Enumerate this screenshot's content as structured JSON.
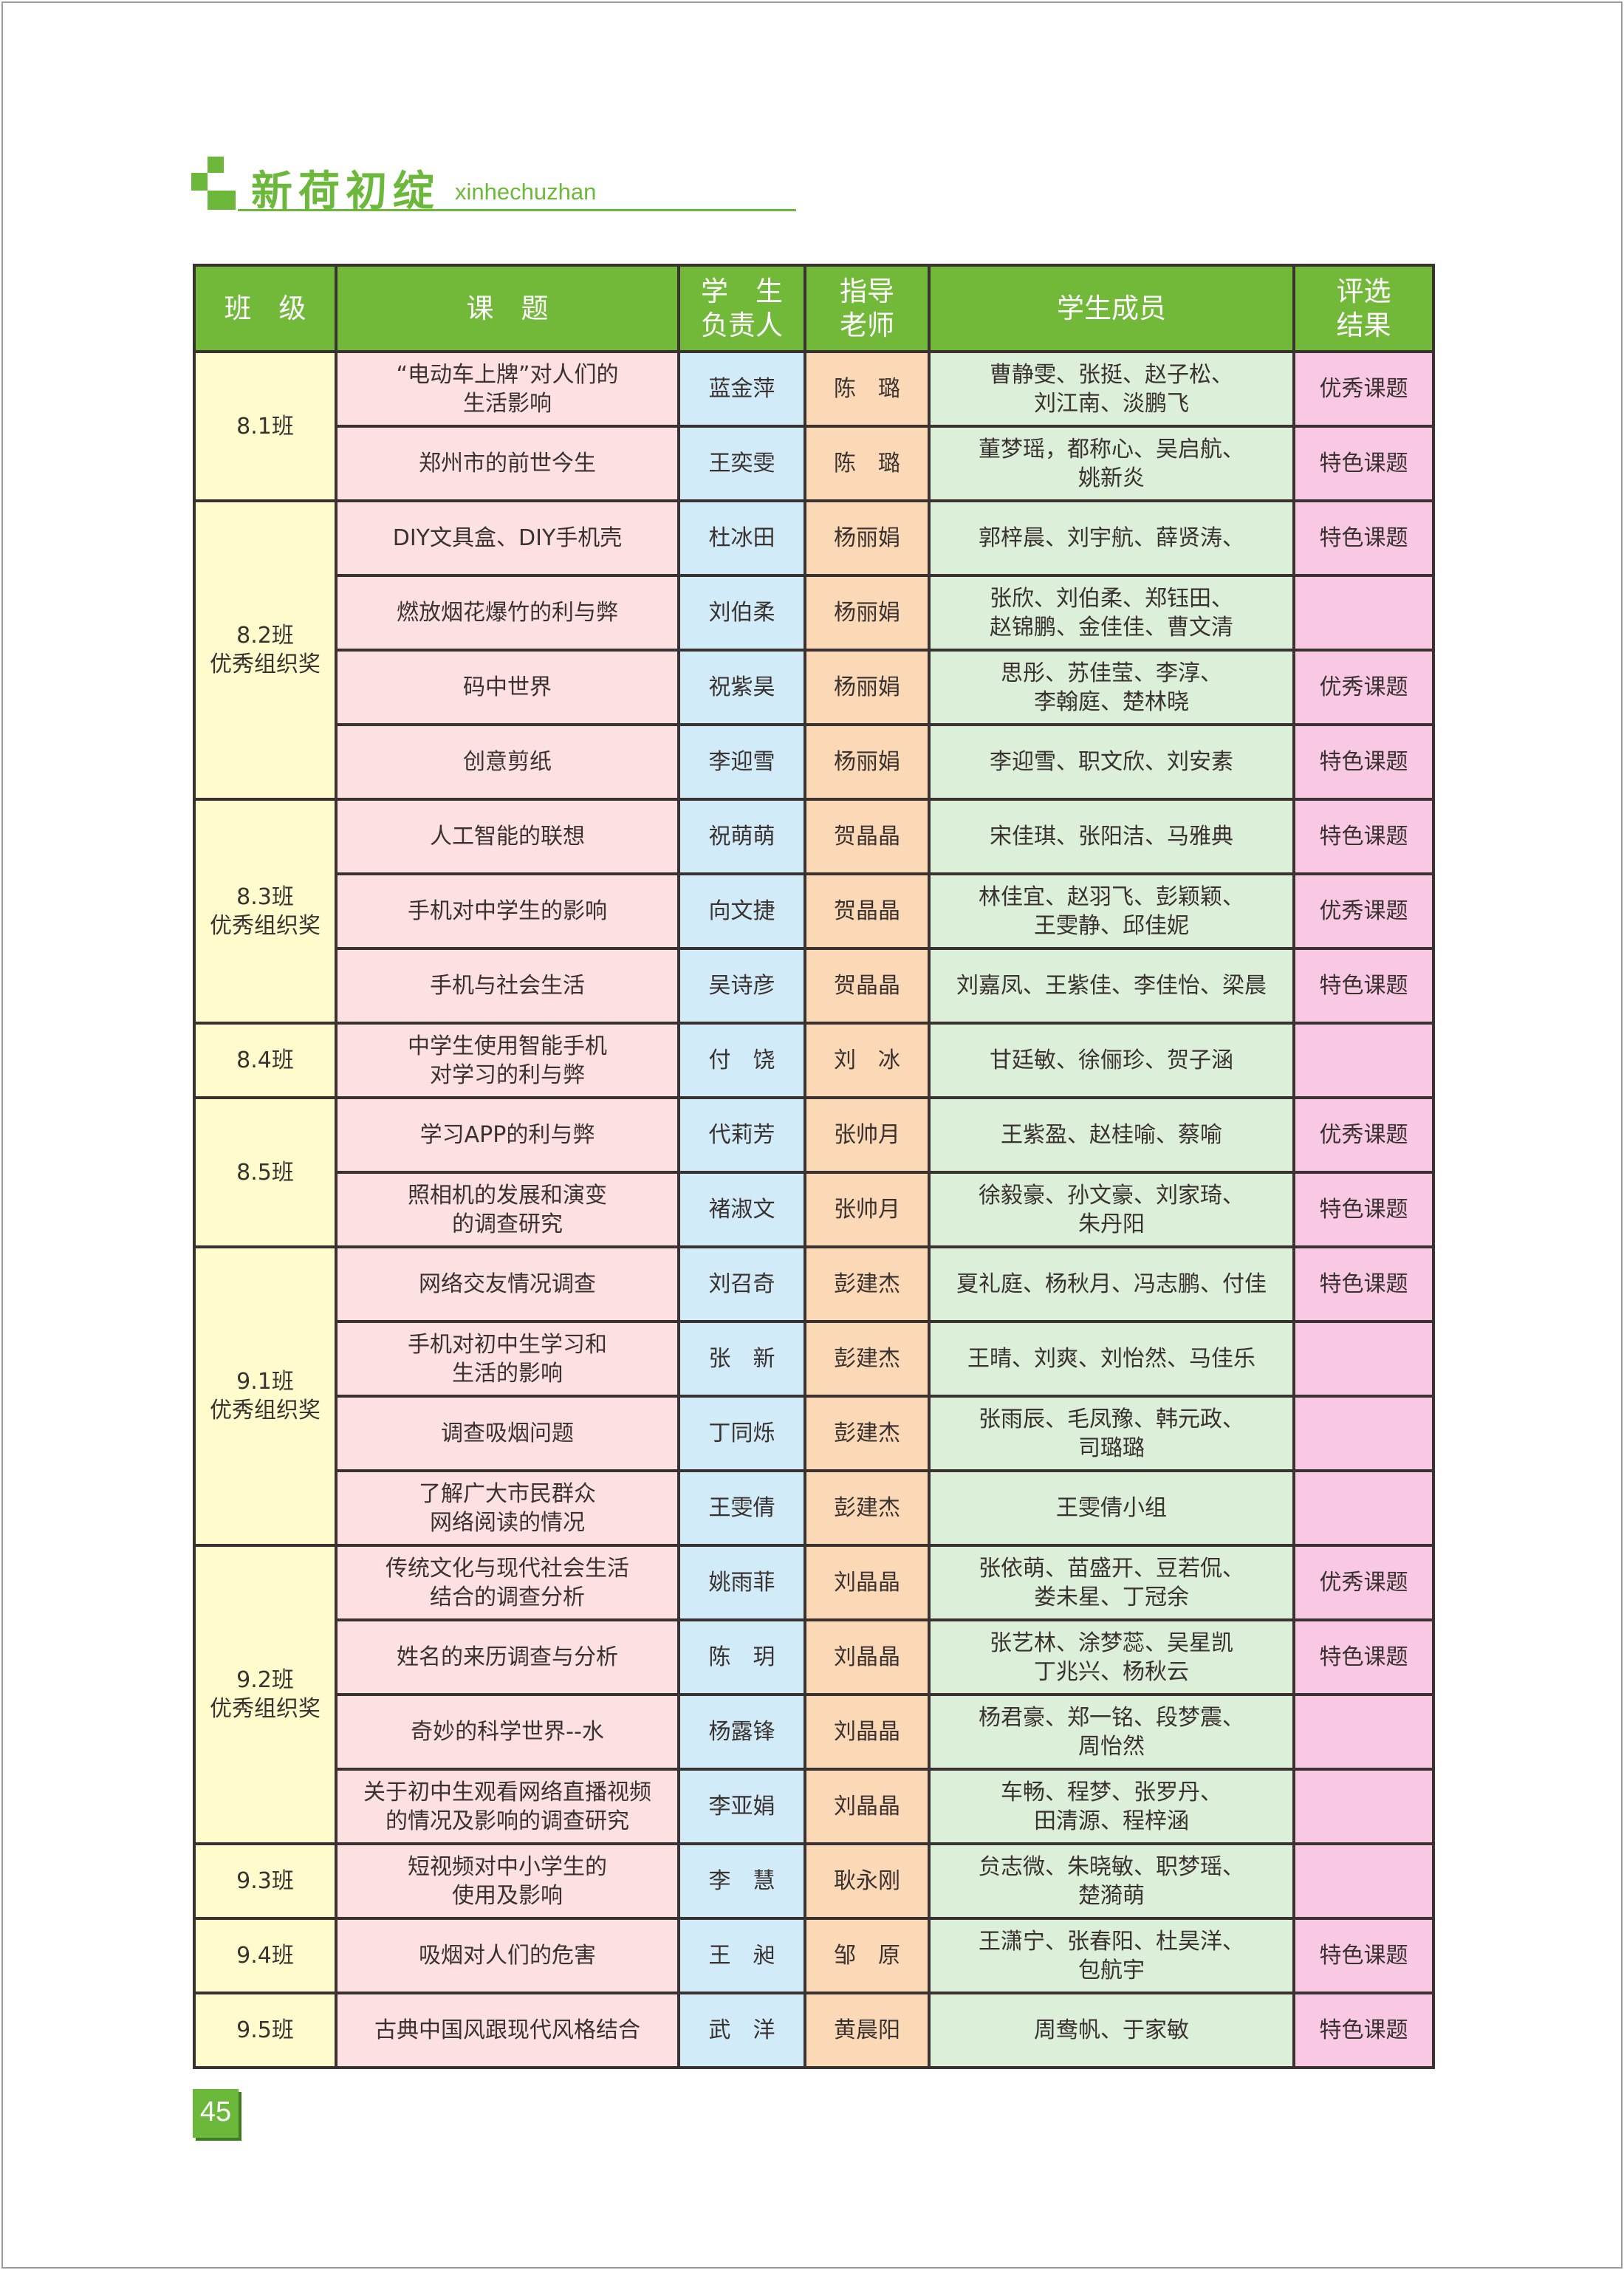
{
  "header": {
    "title": "新荷初绽",
    "subtitle": "xinhechuzhan",
    "accent": "#6cb83a"
  },
  "table": {
    "columns": [
      "班　级",
      "课　题",
      "学　生\n负责人",
      "指导\n老师",
      "学生成员",
      "评选\n结果"
    ],
    "colors": {
      "header": "#72b93a",
      "class": "#fefccc",
      "topic": "#fde0e2",
      "leader": "#d1ecf8",
      "teacher": "#fcd9b6",
      "members": "#dbefd9",
      "result": "#f9c8e3"
    },
    "groups": [
      {
        "class": "8.1班",
        "rows": [
          {
            "topic": "“电动车上牌”对人们的\n生活影响",
            "leader": "蓝金萍",
            "teacher": "陈　璐",
            "members": "曹静雯、张挺、赵子松、\n刘江南、淡鹏飞",
            "result": "优秀课题"
          },
          {
            "topic": "郑州市的前世今生",
            "leader": "王奕雯",
            "teacher": "陈　璐",
            "members": "董梦瑶，都称心、吴启航、\n姚新炎",
            "result": "特色课题"
          }
        ]
      },
      {
        "class": "8.2班\n优秀组织奖",
        "rows": [
          {
            "topic": "DIY文具盒、DIY手机壳",
            "leader": "杜冰田",
            "teacher": "杨丽娟",
            "members": "郭梓晨、刘宇航、薛贤涛、",
            "result": "特色课题"
          },
          {
            "topic": "燃放烟花爆竹的利与弊",
            "leader": "刘伯柔",
            "teacher": "杨丽娟",
            "members": "张欣、刘伯柔、郑钰田、\n赵锦鹏、金佳佳、曹文清",
            "result": ""
          },
          {
            "topic": "码中世界",
            "leader": "祝紫昊",
            "teacher": "杨丽娟",
            "members": "思彤、苏佳莹、李淳、\n李翰庭、楚林晓",
            "result": "优秀课题"
          },
          {
            "topic": "创意剪纸",
            "leader": "李迎雪",
            "teacher": "杨丽娟",
            "members": "李迎雪、职文欣、刘安素",
            "result": "特色课题"
          }
        ]
      },
      {
        "class": "8.3班\n优秀组织奖",
        "rows": [
          {
            "topic": "人工智能的联想",
            "leader": "祝萌萌",
            "teacher": "贺晶晶",
            "members": "宋佳琪、张阳洁、马雅典",
            "result": "特色课题"
          },
          {
            "topic": "手机对中学生的影响",
            "leader": "向文捷",
            "teacher": "贺晶晶",
            "members": "林佳宜、赵羽飞、彭颖颖、\n王雯静、邱佳妮",
            "result": "优秀课题"
          },
          {
            "topic": "手机与社会生活",
            "leader": "吴诗彦",
            "teacher": "贺晶晶",
            "members": "刘嘉凤、王紫佳、李佳怡、梁晨",
            "result": "特色课题"
          }
        ]
      },
      {
        "class": "8.4班",
        "rows": [
          {
            "topic": "中学生使用智能手机\n对学习的利与弊",
            "leader": "付　饶",
            "teacher": "刘　冰",
            "members": "甘廷敏、徐俪珍、贺子涵",
            "result": ""
          }
        ]
      },
      {
        "class": "8.5班",
        "rows": [
          {
            "topic": "学习APP的利与弊",
            "leader": "代莉芳",
            "teacher": "张帅月",
            "members": "王紫盈、赵桂喻、蔡喻",
            "result": "优秀课题"
          },
          {
            "topic": "照相机的发展和演变\n的调查研究",
            "leader": "褚淑文",
            "teacher": "张帅月",
            "members": "徐毅豪、孙文豪、刘家琦、\n朱丹阳",
            "result": "特色课题"
          }
        ]
      },
      {
        "class": "9.1班\n优秀组织奖",
        "rows": [
          {
            "topic": "网络交友情况调查",
            "leader": "刘召奇",
            "teacher": "彭建杰",
            "members": "夏礼庭、杨秋月、冯志鹏、付佳",
            "result": "特色课题"
          },
          {
            "topic": "手机对初中生学习和\n生活的影响",
            "leader": "张　新",
            "teacher": "彭建杰",
            "members": "王晴、刘爽、刘怡然、马佳乐",
            "result": ""
          },
          {
            "topic": "调查吸烟问题",
            "leader": "丁同烁",
            "teacher": "彭建杰",
            "members": "张雨辰、毛凤豫、韩元政、\n司璐璐",
            "result": ""
          },
          {
            "topic": "了解广大市民群众\n网络阅读的情况",
            "leader": "王雯倩",
            "teacher": "彭建杰",
            "members": "王雯倩小组",
            "result": ""
          }
        ]
      },
      {
        "class": "9.2班\n优秀组织奖",
        "rows": [
          {
            "topic": "传统文化与现代社会生活\n结合的调查分析",
            "leader": "姚雨菲",
            "teacher": "刘晶晶",
            "members": "张依萌、苗盛开、豆若侃、\n娄未星、丁冠余",
            "result": "优秀课题"
          },
          {
            "topic": "姓名的来历调查与分析",
            "leader": "陈　玥",
            "teacher": "刘晶晶",
            "members": "张艺林、涂梦蕊、吴星凯\n丁兆兴、杨秋云",
            "result": "特色课题"
          },
          {
            "topic": "奇妙的科学世界--水",
            "leader": "杨露锋",
            "teacher": "刘晶晶",
            "members": "杨君豪、郑一铭、段梦震、\n周怡然",
            "result": ""
          },
          {
            "topic": "关于初中生观看网络直播视频\n的情况及影响的调查研究",
            "leader": "李亚娟",
            "teacher": "刘晶晶",
            "members": "车畅、程梦、张罗丹、\n田清源、程梓涵",
            "result": ""
          }
        ]
      },
      {
        "class": "9.3班",
        "rows": [
          {
            "topic": "短视频对中小学生的\n使用及影响",
            "leader": "李　慧",
            "teacher": "耿永刚",
            "members": "贠志微、朱晓敏、职梦瑶、\n楚漪萌",
            "result": ""
          }
        ]
      },
      {
        "class": "9.4班",
        "rows": [
          {
            "topic": "吸烟对人们的危害",
            "leader": "王　昶",
            "teacher": "邹　原",
            "members": "王潇宁、张春阳、杜昊洋、\n包航宇",
            "result": "特色课题"
          }
        ]
      },
      {
        "class": "9.5班",
        "rows": [
          {
            "topic": "古典中国风跟现代风格结合",
            "leader": "武　洋",
            "teacher": "黄晨阳",
            "members": "周鸯帆、于家敏",
            "result": "特色课题"
          }
        ]
      }
    ]
  },
  "footer": {
    "page_number": "45"
  }
}
